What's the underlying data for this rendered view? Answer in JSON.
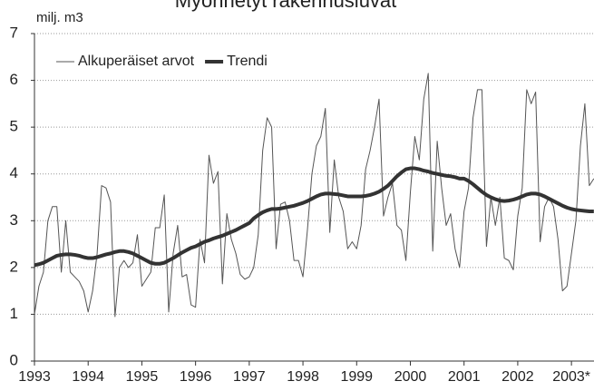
{
  "chart_data": {
    "type": "line",
    "title": "Myönnetyt rakennusluvat",
    "y_label": "milj. m3",
    "x": [
      1993,
      1993.083,
      1993.167,
      1993.25,
      1993.333,
      1993.417,
      1993.5,
      1993.583,
      1993.667,
      1993.75,
      1993.833,
      1993.917,
      1994,
      1994.083,
      1994.167,
      1994.25,
      1994.333,
      1994.417,
      1994.5,
      1994.583,
      1994.667,
      1994.75,
      1994.833,
      1994.917,
      1995,
      1995.083,
      1995.167,
      1995.25,
      1995.333,
      1995.417,
      1995.5,
      1995.583,
      1995.667,
      1995.75,
      1995.833,
      1995.917,
      1996,
      1996.083,
      1996.167,
      1996.25,
      1996.333,
      1996.417,
      1996.5,
      1996.583,
      1996.667,
      1996.75,
      1996.833,
      1996.917,
      1997,
      1997.083,
      1997.167,
      1997.25,
      1997.333,
      1997.417,
      1997.5,
      1997.583,
      1997.667,
      1997.75,
      1997.833,
      1997.917,
      1998,
      1998.083,
      1998.167,
      1998.25,
      1998.333,
      1998.417,
      1998.5,
      1998.583,
      1998.667,
      1998.75,
      1998.833,
      1998.917,
      1999,
      1999.083,
      1999.167,
      1999.25,
      1999.333,
      1999.417,
      1999.5,
      1999.583,
      1999.667,
      1999.75,
      1999.833,
      1999.917,
      2000,
      2000.083,
      2000.167,
      2000.25,
      2000.333,
      2000.417,
      2000.5,
      2000.583,
      2000.667,
      2000.75,
      2000.833,
      2000.917,
      2001,
      2001.083,
      2001.167,
      2001.25,
      2001.333,
      2001.417,
      2001.5,
      2001.583,
      2001.667,
      2001.75,
      2001.833,
      2001.917,
      2002,
      2002.083,
      2002.167,
      2002.25,
      2002.333,
      2002.417,
      2002.5,
      2002.583,
      2002.667,
      2002.75,
      2002.833,
      2002.917,
      2003,
      2003.083,
      2003.167,
      2003.25,
      2003.333,
      2003.417
    ],
    "series": [
      {
        "name": "Alkuperäiset arvot",
        "color": "#555555",
        "width": 1,
        "values": [
          1.0,
          1.6,
          1.9,
          3.0,
          3.3,
          3.3,
          1.9,
          3.0,
          1.9,
          1.8,
          1.7,
          1.5,
          1.05,
          1.5,
          2.3,
          3.75,
          3.7,
          3.4,
          0.95,
          2.0,
          2.15,
          2.0,
          2.1,
          2.7,
          1.6,
          1.75,
          1.9,
          2.85,
          2.85,
          3.55,
          1.05,
          2.3,
          2.9,
          1.8,
          1.85,
          1.2,
          1.15,
          2.6,
          2.1,
          4.4,
          3.8,
          4.05,
          1.65,
          3.15,
          2.6,
          2.3,
          1.85,
          1.75,
          1.8,
          2.0,
          2.7,
          4.5,
          5.2,
          5.0,
          2.4,
          3.35,
          3.4,
          3.0,
          2.15,
          2.15,
          1.8,
          2.8,
          4.0,
          4.6,
          4.8,
          5.4,
          2.75,
          4.3,
          3.5,
          3.2,
          2.4,
          2.55,
          2.4,
          2.9,
          4.1,
          4.5,
          5.0,
          5.6,
          3.1,
          3.5,
          3.8,
          2.9,
          2.8,
          2.15,
          3.6,
          4.8,
          4.3,
          5.6,
          6.15,
          2.35,
          4.7,
          3.7,
          2.9,
          3.15,
          2.4,
          2.0,
          3.2,
          3.7,
          5.2,
          5.8,
          5.8,
          2.45,
          3.5,
          2.9,
          3.5,
          2.2,
          2.15,
          1.95,
          3.1,
          3.7,
          5.8,
          5.5,
          5.75,
          2.55,
          3.3,
          3.5,
          3.3,
          2.6,
          1.5,
          1.6,
          2.3,
          3.0,
          4.6,
          5.5,
          3.75,
          3.9
        ]
      },
      {
        "name": "Trendi",
        "color": "#333333",
        "width": 4,
        "values": [
          2.05,
          2.07,
          2.1,
          2.15,
          2.2,
          2.25,
          2.27,
          2.28,
          2.28,
          2.27,
          2.25,
          2.22,
          2.2,
          2.2,
          2.22,
          2.25,
          2.28,
          2.3,
          2.33,
          2.35,
          2.35,
          2.33,
          2.3,
          2.25,
          2.2,
          2.15,
          2.1,
          2.08,
          2.08,
          2.1,
          2.15,
          2.2,
          2.26,
          2.32,
          2.37,
          2.42,
          2.45,
          2.5,
          2.55,
          2.58,
          2.62,
          2.65,
          2.68,
          2.72,
          2.76,
          2.8,
          2.85,
          2.9,
          2.95,
          3.05,
          3.12,
          3.18,
          3.22,
          3.25,
          3.25,
          3.26,
          3.28,
          3.3,
          3.32,
          3.35,
          3.38,
          3.42,
          3.47,
          3.52,
          3.56,
          3.58,
          3.58,
          3.57,
          3.56,
          3.54,
          3.52,
          3.52,
          3.52,
          3.52,
          3.53,
          3.55,
          3.58,
          3.62,
          3.68,
          3.75,
          3.85,
          3.95,
          4.03,
          4.1,
          4.12,
          4.12,
          4.1,
          4.07,
          4.05,
          4.02,
          4.0,
          3.98,
          3.96,
          3.95,
          3.93,
          3.9,
          3.9,
          3.85,
          3.78,
          3.7,
          3.62,
          3.55,
          3.5,
          3.46,
          3.43,
          3.42,
          3.43,
          3.45,
          3.48,
          3.52,
          3.56,
          3.58,
          3.58,
          3.56,
          3.52,
          3.47,
          3.42,
          3.37,
          3.32,
          3.28,
          3.25,
          3.23,
          3.22,
          3.21,
          3.2,
          3.2
        ]
      }
    ],
    "xlim": [
      1993,
      2003.42
    ],
    "xticks": [
      1993,
      1994,
      1995,
      1996,
      1997,
      1998,
      1999,
      2000,
      2001,
      2002,
      {
        "value": 2003,
        "label": "2003*"
      }
    ],
    "ylim": [
      0,
      7
    ],
    "yticks": [
      0,
      1,
      2,
      3,
      4,
      5,
      6,
      7
    ],
    "grid": true,
    "legend": "top-left"
  }
}
